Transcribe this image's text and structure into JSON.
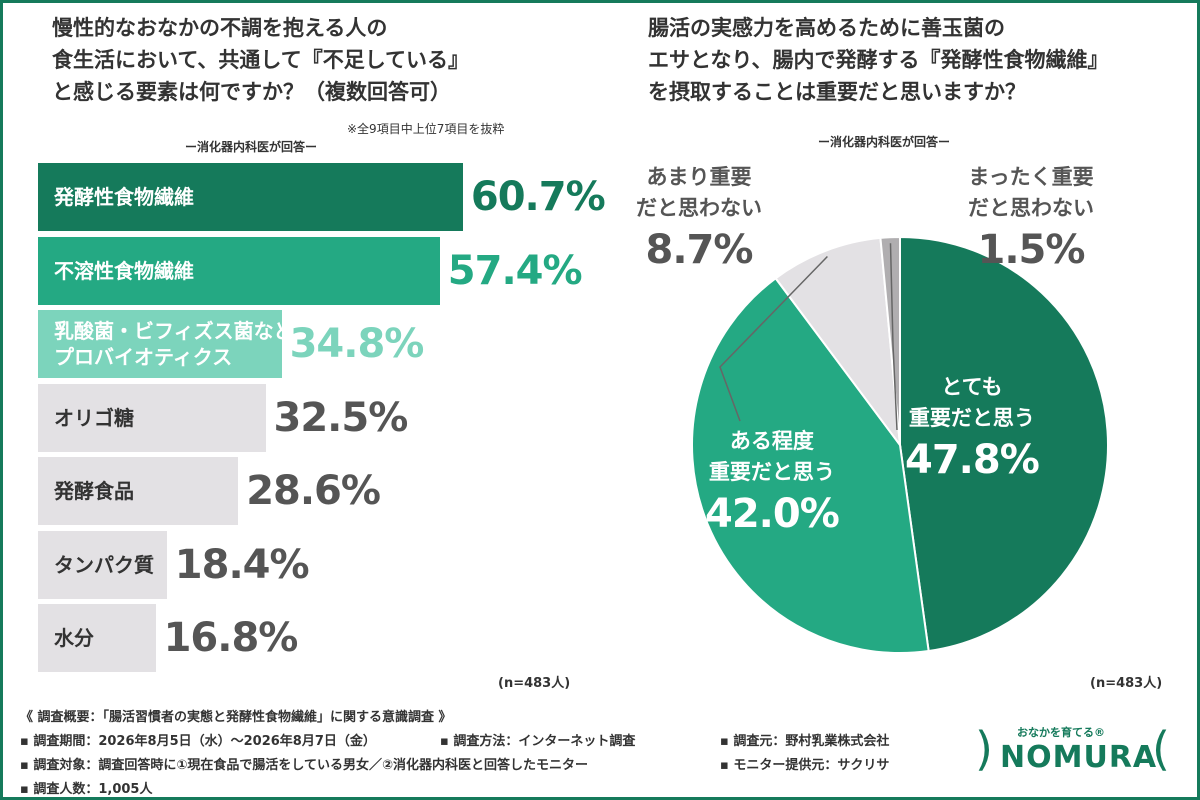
{
  "left_chart": {
    "title_lines": [
      "慢性的なおなかの不調を抱える人の",
      "食生活において、共通して『不足している』",
      "と感じる要素は何ですか？（複数回答可）"
    ],
    "note": "※全9項目中上位7項目を抜粋",
    "respondent": "ー消化器内科医が回答ー",
    "n": "(n=483人)"
  },
  "right_chart": {
    "title_lines": [
      "腸活の実感力を高めるために善玉菌の",
      "エサとなり、腸内で発酵する『発酵性食物繊維』",
      "を摂取することは重要だと思いますか？"
    ],
    "respondent": "ー消化器内科医が回答ー",
    "n": "(n=483人)"
  },
  "chart_data": [
    {
      "type": "bar",
      "orientation": "horizontal",
      "categories": [
        "発酵性食物繊維",
        "不溶性食物繊維",
        "乳酸菌・ビフィズス菌などのプロバイオティクス",
        "オリゴ糖",
        "発酵食品",
        "タンパク質",
        "水分"
      ],
      "category_lines": [
        [
          "発酵性食物繊維"
        ],
        [
          "不溶性食物繊維"
        ],
        [
          "乳酸菌・ビフィズス菌などの",
          "プロバイオティクス"
        ],
        [
          "オリゴ糖"
        ],
        [
          "発酵食品"
        ],
        [
          "タンパク質"
        ],
        [
          "水分"
        ]
      ],
      "values": [
        60.7,
        57.4,
        34.8,
        32.5,
        28.6,
        18.4,
        16.8
      ],
      "value_labels": [
        "60.7%",
        "57.4%",
        "34.8%",
        "32.5%",
        "28.6%",
        "18.4%",
        "16.8%"
      ],
      "colors": [
        "#157a5b",
        "#24a983",
        "#7cd4bc",
        "#e3e1e4",
        "#e3e1e4",
        "#e3e1e4",
        "#e3e1e4"
      ],
      "label_colors": [
        "#ffffff",
        "#ffffff",
        "#ffffff",
        "#333333",
        "#333333",
        "#333333",
        "#333333"
      ],
      "value_colors": [
        "#157a5b",
        "#24a983",
        "#7cd4bc",
        "#555555",
        "#555555",
        "#555555",
        "#555555"
      ],
      "xlim": [
        0,
        100
      ]
    },
    {
      "type": "pie",
      "start": "12 o'clock, clockwise",
      "categories": [
        "とても重要だと思う",
        "ある程度重要だと思う",
        "あまり重要だと思わない",
        "まったく重要だと思わない"
      ],
      "category_lines": [
        [
          "とても",
          "重要だと思う"
        ],
        [
          "ある程度",
          "重要だと思う"
        ],
        [
          "あまり重要",
          "だと思わない"
        ],
        [
          "まったく重要",
          "だと思わない"
        ]
      ],
      "values": [
        47.8,
        42.0,
        8.7,
        1.5
      ],
      "value_labels": [
        "47.8%",
        "42.0%",
        "8.7%",
        "1.5%"
      ],
      "colors": [
        "#157a5b",
        "#24a983",
        "#e3e1e4",
        "#b0aeb0"
      ]
    }
  ],
  "footer": {
    "survey_name": "《 調査概要：「腸活習慣者の実態と発酵性食物繊維」に関する意識調査 》",
    "period": "▪ 調査期間：2026年8月5日（水）～2026年8月7日（金）",
    "method": "▪ 調査方法：インターネット調査",
    "organizer": "▪ 調査元：野村乳業株式会社",
    "target": "▪ 調査対象：調査回答時に①現在食品で腸活をしている男女／②消化器内科医と回答したモニター",
    "monitor": "▪ モニター提供元：サクリサ",
    "count": "▪ 調査人数：1,005人"
  },
  "logo": {
    "tagline": "おなかを育てる®",
    "name": "NOMURA"
  }
}
